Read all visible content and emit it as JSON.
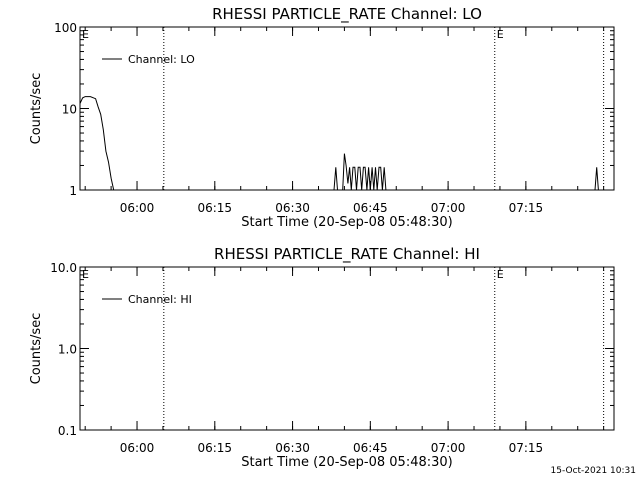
{
  "footer": {
    "timestamp": "15-Oct-2021 10:31"
  },
  "chart_data": [
    {
      "type": "line",
      "title": "RHESSI PARTICLE_RATE Channel: LO",
      "xlabel": "Start Time (20-Sep-08 05:48:30)",
      "ylabel": "Counts/sec",
      "yscale": "log",
      "ylim": [
        1,
        100
      ],
      "y_ticks": [
        1,
        10,
        100
      ],
      "y_tick_labels": [
        "1",
        "10",
        "100"
      ],
      "xlim": [
        "05:49",
        "07:32"
      ],
      "x_ticks": [
        "06:00",
        "06:15",
        "06:30",
        "06:45",
        "07:00",
        "07:15"
      ],
      "legend": {
        "position": "top-left",
        "entries": [
          "Channel: LO"
        ]
      },
      "series": [
        {
          "name": "Channel: LO",
          "segments": [
            {
              "x": [
                "05:49:00",
                "05:49:30",
                "05:50:00",
                "05:51:00",
                "05:52:00",
                "05:52:30",
                "05:53:00",
                "05:53:30",
                "05:54:00",
                "05:54:30",
                "05:55:00",
                "05:55:30"
              ],
              "y": [
                11.5,
                13.5,
                14,
                14,
                13.2,
                10.5,
                8.5,
                5.5,
                3.0,
                2.2,
                1.4,
                1.0
              ]
            },
            {
              "x": [
                "06:38:00",
                "06:38:20",
                "06:38:40"
              ],
              "y": [
                1.0,
                1.9,
                1.0
              ]
            },
            {
              "x": [
                "06:39:40",
                "06:40:00",
                "06:40:20",
                "06:40:40",
                "06:41:00",
                "06:41:20",
                "06:41:40",
                "06:42:00",
                "06:42:20",
                "06:42:40",
                "06:43:00",
                "06:43:20",
                "06:43:40",
                "06:44:00",
                "06:44:20",
                "06:44:40",
                "06:45:00",
                "06:45:20",
                "06:45:40",
                "06:46:00",
                "06:46:20",
                "06:46:40",
                "06:47:00",
                "06:47:20",
                "06:47:40",
                "06:48:00"
              ],
              "y": [
                1.0,
                2.8,
                2.0,
                1.2,
                1.9,
                1.0,
                1.9,
                1.9,
                1.0,
                1.9,
                1.9,
                1.0,
                1.9,
                1.9,
                1.0,
                1.9,
                1.0,
                1.9,
                1.0,
                1.9,
                1.0,
                1.9,
                1.9,
                1.0,
                1.9,
                1.0
              ]
            },
            {
              "x": [
                "07:28:20",
                "07:28:40",
                "07:29:00"
              ],
              "y": [
                1.0,
                1.9,
                1.0
              ]
            }
          ]
        }
      ],
      "vertical_markers": [
        {
          "x": "06:05:10",
          "style": "dotted",
          "label": ""
        },
        {
          "x": "07:09:00",
          "style": "dotted",
          "label": "E"
        },
        {
          "x": "07:30:00",
          "style": "dotted",
          "label": ""
        }
      ],
      "corner_label": "E"
    },
    {
      "type": "line",
      "title": "RHESSI PARTICLE_RATE Channel: HI",
      "xlabel": "Start Time (20-Sep-08 05:48:30)",
      "ylabel": "Counts/sec",
      "yscale": "log",
      "ylim": [
        0.1,
        10
      ],
      "y_ticks": [
        0.1,
        1,
        10
      ],
      "y_tick_labels": [
        "0.1",
        "1.0",
        "10.0"
      ],
      "xlim": [
        "05:49",
        "07:32"
      ],
      "x_ticks": [
        "06:00",
        "06:15",
        "06:30",
        "06:45",
        "07:00",
        "07:15"
      ],
      "legend": {
        "position": "top-left",
        "entries": [
          "Channel: HI"
        ]
      },
      "series": [
        {
          "name": "Channel: HI",
          "segments": []
        }
      ],
      "vertical_markers": [
        {
          "x": "06:05:10",
          "style": "dotted",
          "label": ""
        },
        {
          "x": "07:09:00",
          "style": "dotted",
          "label": "E"
        },
        {
          "x": "07:30:00",
          "style": "dotted",
          "label": ""
        }
      ],
      "corner_label": "E"
    }
  ]
}
